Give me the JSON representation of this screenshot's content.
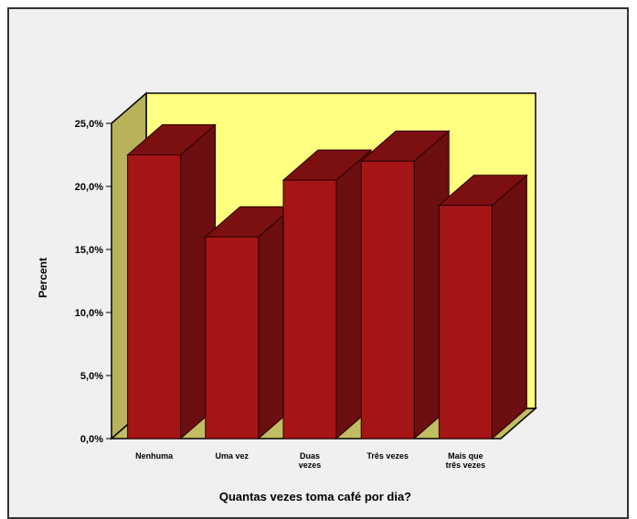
{
  "chart_data": {
    "type": "bar",
    "categories": [
      [
        "Nenhuma"
      ],
      [
        "Uma vez"
      ],
      [
        "Duas",
        "vezes"
      ],
      [
        "Três vezes"
      ],
      [
        "Mais que",
        "três vezes"
      ]
    ],
    "values": [
      22.5,
      16.0,
      20.5,
      22.0,
      18.5
    ],
    "yticks": [
      "0,0%",
      "5,0%",
      "10,0%",
      "15,0%",
      "20,0%",
      "25,0%"
    ],
    "ylim": [
      0,
      25
    ],
    "xlabel": "Quantas vezes toma café por dia?",
    "ylabel": "Percent",
    "style": "3d",
    "colors": {
      "bar_front": "#a51516",
      "bar_side": "#6b0f10",
      "bar_top": "#7c1011",
      "bar_outline": "#2a0000",
      "back_wall": "#ffff80",
      "side_wall": "#b8b35a",
      "floor": "#c2bd62"
    }
  }
}
